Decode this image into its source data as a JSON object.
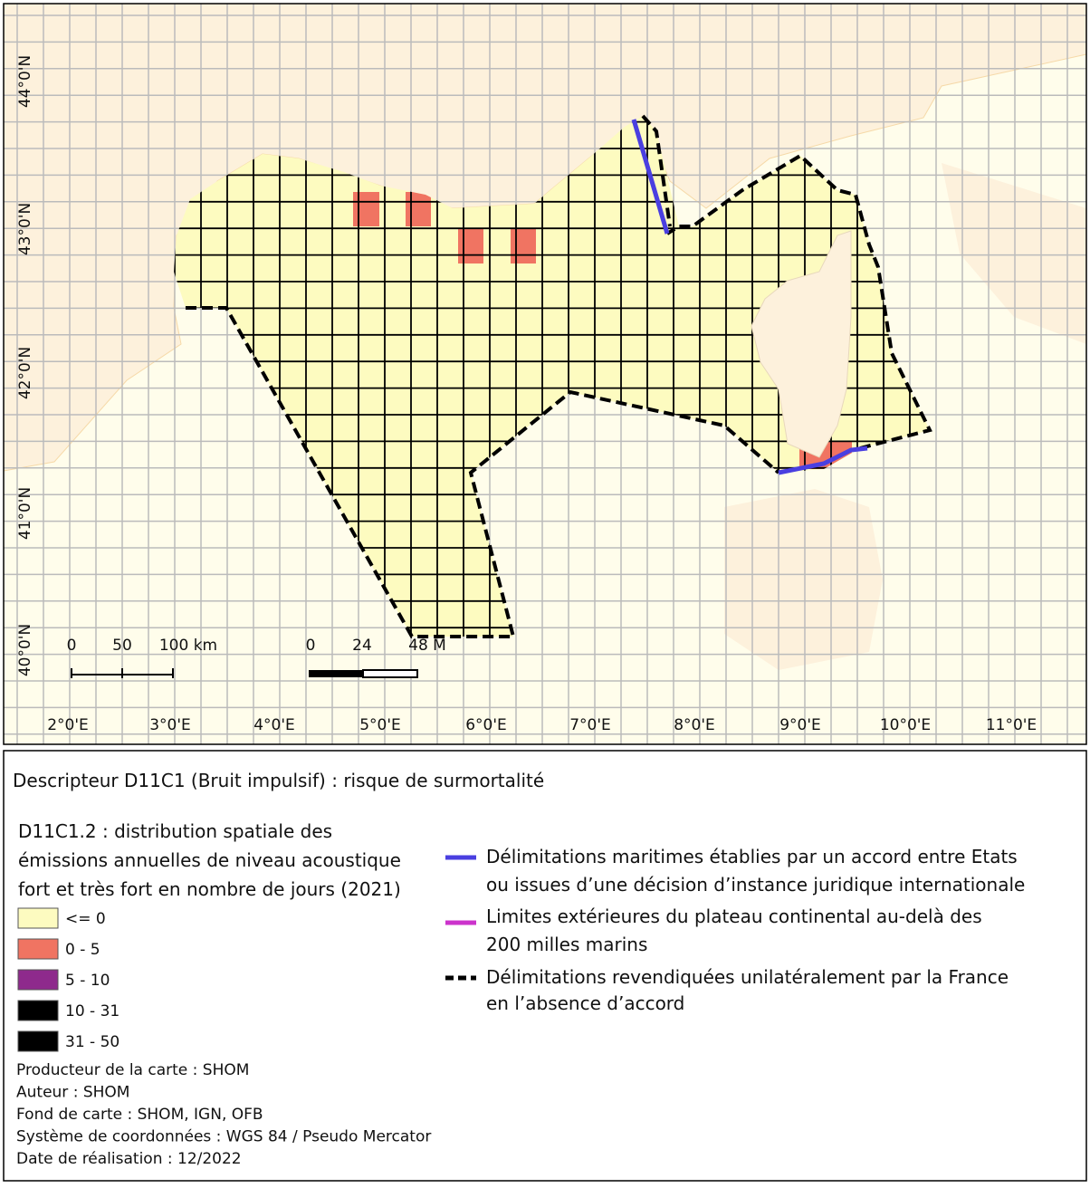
{
  "map": {
    "lat_labels": [
      "44°0'N",
      "43°0'N",
      "42°0'N",
      "41°0'N",
      "40°0'N"
    ],
    "lon_labels": [
      "2°0'E",
      "3°0'E",
      "4°0'E",
      "5°0'E",
      "6°0'E",
      "7°0'E",
      "8°0'E",
      "9°0'E",
      "10°0'E",
      "11°0'E"
    ],
    "scale_km": [
      "0",
      "50",
      "100 km"
    ],
    "scale_nm": [
      "0",
      "24",
      "48 M"
    ]
  },
  "legend": {
    "title": "Descripteur D11C1 (Bruit impulsif) : risque de surmortalité",
    "subtitle_lines": [
      "D11C1.2 : distribution spatiale des",
      "émissions annuelles de niveau acoustique",
      "fort et très fort en nombre de jours (2021)"
    ],
    "classes": [
      {
        "label": "<= 0",
        "color": "#fdfbc0"
      },
      {
        "label": "0 - 5",
        "color": "#f07462"
      },
      {
        "label": "5 - 10",
        "color": "#8e2a8c"
      },
      {
        "label": "10 - 31",
        "color": "#000000"
      },
      {
        "label": "31 - 50",
        "color": "#000000"
      }
    ],
    "boundaries": [
      {
        "lines": [
          "Délimitations maritimes établies par un accord entre Etats",
          "ou issues d’une décision d’instance juridique internationale"
        ],
        "color": "#4a3fe0",
        "style": "solid"
      },
      {
        "lines": [
          "Limites extérieures du plateau continental au-delà des",
          "200 milles marins"
        ],
        "color": "#cc33cc",
        "style": "solid"
      },
      {
        "lines": [
          "Délimitations revendiquées unilatéralement par la France",
          "en l’absence d’accord"
        ],
        "color": "#000000",
        "style": "dashed"
      }
    ]
  },
  "credits": [
    "Producteur de la carte : SHOM",
    "Auteur : SHOM",
    "Fond de carte : SHOM, IGN, OFB",
    "Système de coordonnées : WGS 84 / Pseudo Mercator",
    "Date de réalisation : 12/2022"
  ]
}
